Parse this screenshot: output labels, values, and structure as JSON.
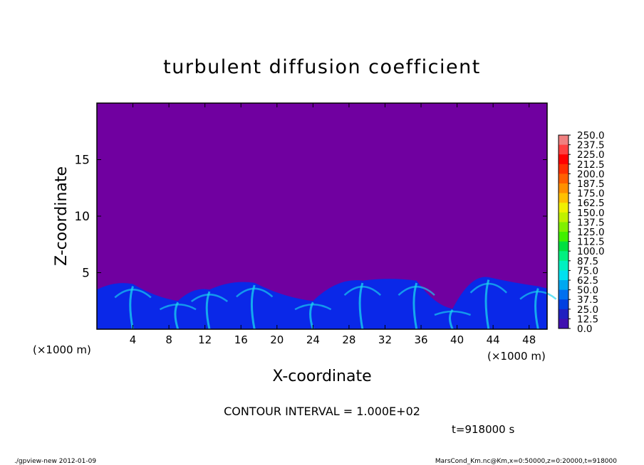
{
  "chart_data": {
    "type": "heatmap",
    "title": "turbulent diffusion coefficient",
    "xlabel": "X-coordinate",
    "ylabel": "Z-coordinate",
    "x_unit_left": "(×1000 m)",
    "x_unit_right": "(×1000 m)",
    "xlim": [
      0,
      50
    ],
    "ylim": [
      0,
      20
    ],
    "x_ticks": [
      4,
      8,
      12,
      16,
      20,
      24,
      28,
      32,
      36,
      40,
      44,
      48
    ],
    "y_ticks": [
      5,
      10,
      15
    ],
    "x_tick_labels": [
      "4",
      "8",
      "12",
      "16",
      "20",
      "24",
      "28",
      "32",
      "36",
      "40",
      "44",
      "48"
    ],
    "y_tick_labels": [
      "5",
      "10",
      "15"
    ],
    "colorbar": {
      "levels": [
        "250.0",
        "237.5",
        "225.0",
        "212.5",
        "200.0",
        "187.5",
        "175.0",
        "162.5",
        "150.0",
        "137.5",
        "125.0",
        "112.5",
        "100.0",
        "87.5",
        "75.0",
        "62.5",
        "50.0",
        "37.5",
        "25.0",
        "12.5",
        "0.0"
      ],
      "colors": [
        "#f08080",
        "#ff4040",
        "#ff0000",
        "#ff3000",
        "#ff6000",
        "#ff9000",
        "#ffc000",
        "#f0f000",
        "#c0f000",
        "#80f000",
        "#40f000",
        "#00e040",
        "#00f080",
        "#00f0c0",
        "#00e0f0",
        "#00a8f0",
        "#0070f0",
        "#0040e0",
        "#2020c0",
        "#4010b0",
        "#7000a0"
      ]
    },
    "plume_tops_x": [
      4,
      9,
      12.5,
      17.5,
      24,
      29.5,
      35.5,
      39.5,
      43.5,
      49
    ],
    "plume_tops_z": [
      4.0,
      2.5,
      3.5,
      4.1,
      2.5,
      4.3,
      4.3,
      1.8,
      4.6,
      3.8
    ],
    "contour_interval": "CONTOUR INTERVAL = 1.000E+02",
    "time": "t=918000 s"
  },
  "footer": {
    "left": "./gpview-new  2012-01-09",
    "right": "MarsCond_Km.nc@Km,x=0:50000,z=0:20000,t=918000"
  },
  "colors": {
    "background_field": "#7000a0",
    "boundary_layer": "#0a28e8",
    "plume_core": "#18d4f0"
  }
}
